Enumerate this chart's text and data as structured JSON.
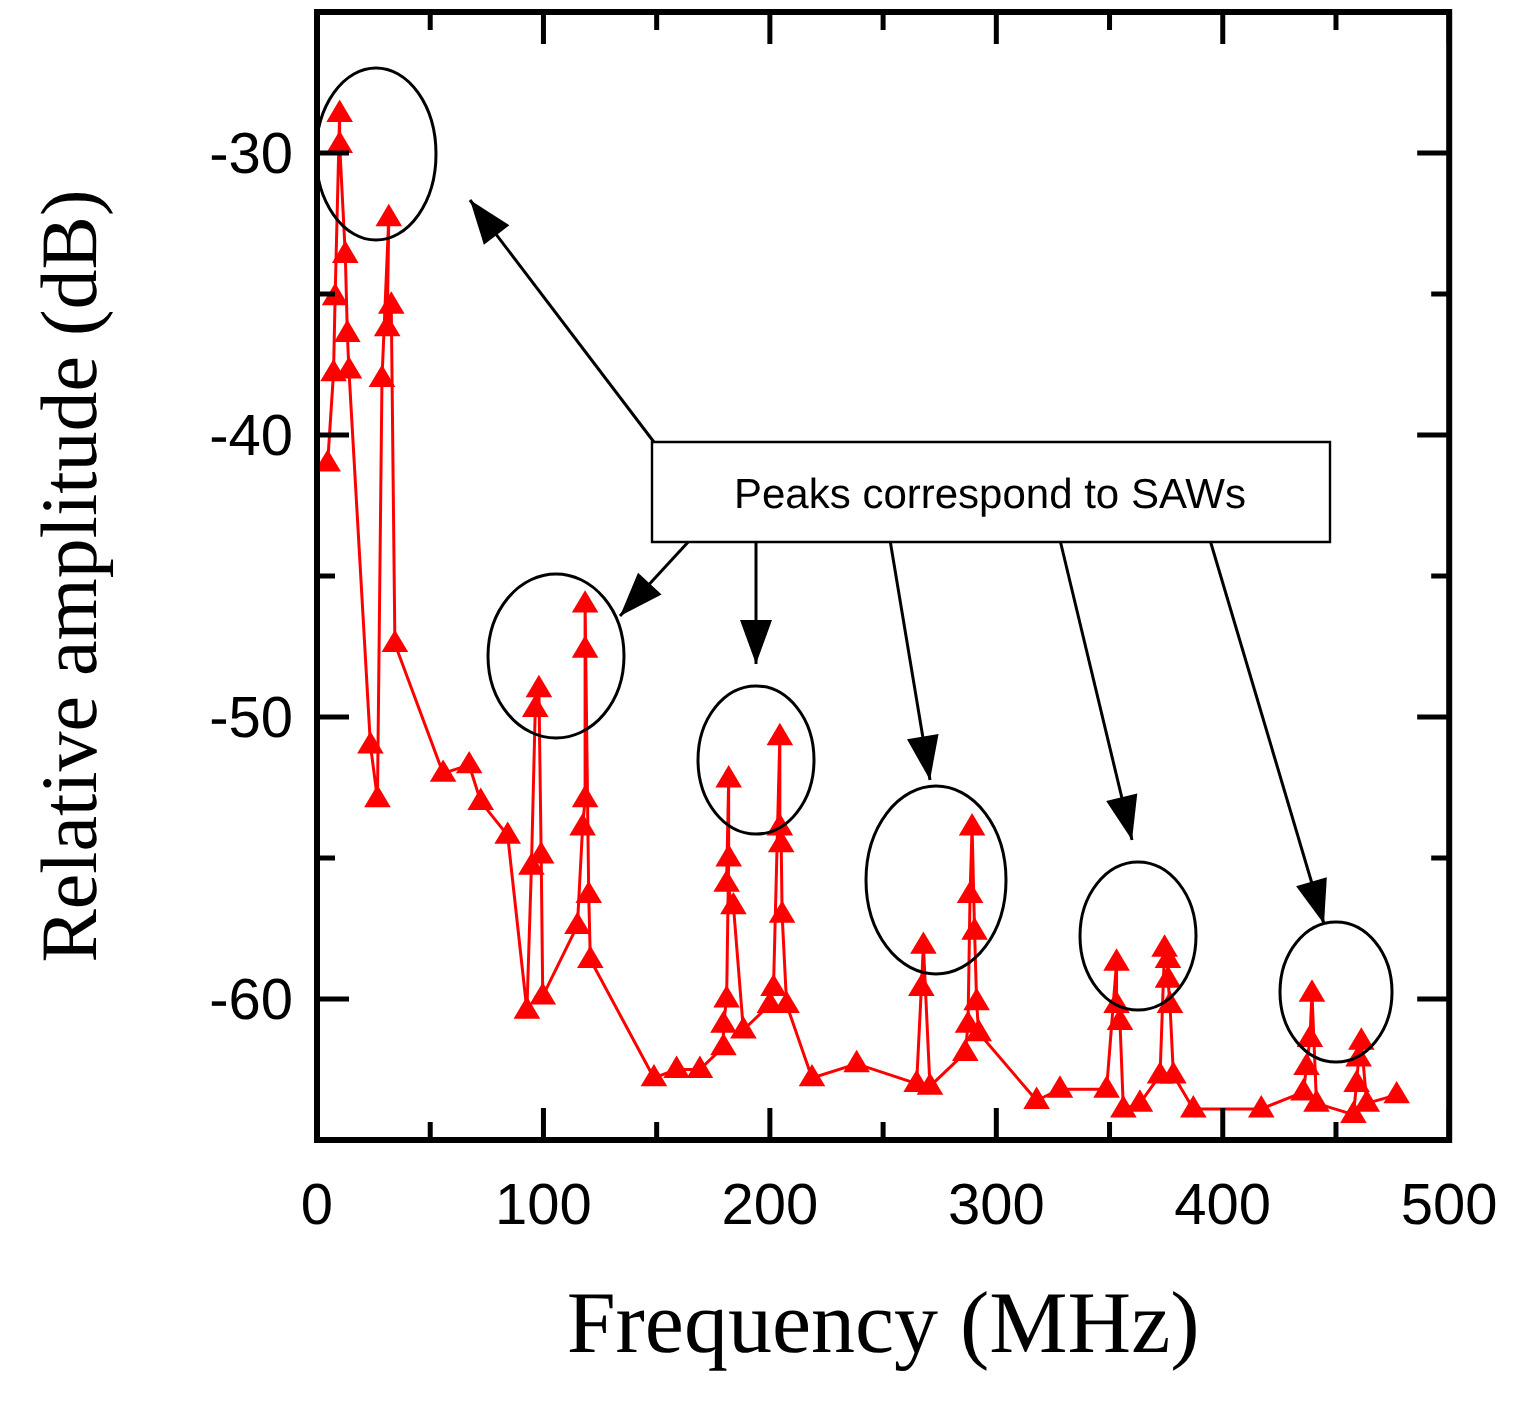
{
  "chart_data": {
    "type": "line",
    "xlabel": "Frequency (MHz)",
    "ylabel": "Relative amplitude (dB)",
    "xlim": [
      0,
      500
    ],
    "ylim": [
      -65,
      -25
    ],
    "xticks": [
      0,
      {
        "value": 50,
        "label": null
      },
      100,
      {
        "value": 150,
        "label": null
      },
      200,
      {
        "value": 250,
        "label": null
      },
      300,
      {
        "value": 350,
        "label": null
      },
      400,
      {
        "value": 450,
        "label": null
      },
      500
    ],
    "yticks": [
      -30,
      {
        "value": -35,
        "label": null
      },
      -40,
      {
        "value": -45,
        "label": null
      },
      -50,
      {
        "value": -55,
        "label": null
      },
      -60
    ],
    "marker": "triangle",
    "line_style": "solid",
    "grid": false,
    "annotations": [
      "Peaks correspond to SAWs"
    ],
    "series": [
      {
        "color": "#ff0000",
        "x": [
          4.7,
          7.3,
          8,
          10,
          10,
          12.5,
          13.4,
          14.1,
          23.6,
          26.7,
          28.7,
          31.7,
          31,
          32.8,
          34.4,
          55.7,
          67.2,
          72.3,
          84.2,
          92.7,
          94.7,
          96.4,
          98,
          99,
          99.7,
          115,
          117.3,
          118.4,
          118.4,
          118.4,
          120,
          120.7,
          148.8,
          158.8,
          169.1,
          179.5,
          179.5,
          180.9,
          181.8,
          181.8,
          180.9,
          183.9,
          188.3,
          200,
          201.6,
          204.4,
          204.4,
          205,
          205.4,
          207.4,
          218.6,
          238.3,
          264.8,
          266.9,
          267.8,
          270.7,
          286.3,
          287.5,
          288.4,
          289.3,
          290.4,
          291.3,
          292.2,
          317.8,
          328.1,
          348.7,
          353.1,
          353.1,
          354.6,
          356.1,
          363.4,
          372.3,
          374.3,
          375.8,
          375.8,
          376.7,
          378.2,
          387,
          417,
          435.6,
          437,
          438.5,
          439.4,
          441.4,
          457.7,
          459.1,
          460,
          461.2,
          463.6,
          476.8
        ],
        "values": [
          -41.0,
          -37.8,
          -35.1,
          -28.6,
          -29.7,
          -33.6,
          -36.4,
          -37.7,
          -51.0,
          -52.9,
          -38.0,
          -32.3,
          -36.2,
          -35.4,
          -47.4,
          -52.0,
          -51.7,
          -53.0,
          -54.2,
          -60.4,
          -55.3,
          -49.7,
          -49.0,
          -54.9,
          -59.9,
          -57.4,
          -53.9,
          -52.9,
          -47.6,
          -46.0,
          -56.3,
          -58.6,
          -62.8,
          -62.5,
          -62.5,
          -61.7,
          -60.9,
          -60.0,
          -55.0,
          -52.2,
          -55.9,
          -56.7,
          -61.1,
          -60.2,
          -59.6,
          -50.7,
          -53.9,
          -54.5,
          -57.0,
          -60.2,
          -62.8,
          -62.3,
          -63.0,
          -59.6,
          -58.1,
          -63.1,
          -61.9,
          -60.9,
          -56.3,
          -53.9,
          -57.6,
          -60.1,
          -61.2,
          -63.6,
          -63.2,
          -63.2,
          -58.7,
          -60.2,
          -60.8,
          -63.9,
          -63.7,
          -62.7,
          -58.2,
          -58.6,
          -59.3,
          -60.2,
          -62.7,
          -63.9,
          -63.9,
          -63.3,
          -62.4,
          -61.4,
          -59.8,
          -63.7,
          -64.1,
          -63.0,
          -62.1,
          -61.5,
          -63.7,
          -63.4
        ]
      }
    ]
  }
}
